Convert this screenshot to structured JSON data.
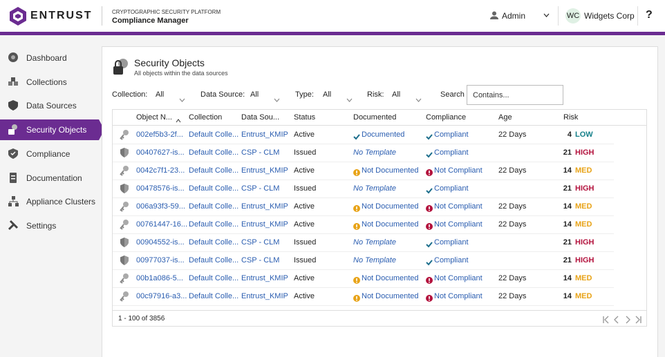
{
  "header": {
    "logo": "ENTRUST",
    "platform": "CRYPTOGRAPHIC SECURITY PLATFORM",
    "product": "Compliance Manager",
    "user": "Admin",
    "org_initials": "WC",
    "org": "Widgets Corp",
    "help": "?"
  },
  "nav": {
    "items": [
      "Dashboard",
      "Collections",
      "Data Sources",
      "Security Objects",
      "Compliance",
      "Documentation",
      "Appliance Clusters",
      "Settings"
    ],
    "selected": 3
  },
  "panel": {
    "title": "Security Objects",
    "subtitle": "All objects within the data sources",
    "filters": [
      {
        "label": "Collection:",
        "value": "All"
      },
      {
        "label": "Data Source:",
        "value": "All"
      },
      {
        "label": "Type:",
        "value": "All"
      },
      {
        "label": "Risk:",
        "value": "All"
      }
    ],
    "search": {
      "label": "Search",
      "placeholder": "Contains..."
    },
    "table": {
      "columns": [
        "Object N...",
        "Collection",
        "Data Sou...",
        "Status",
        "Documented",
        "Compliance",
        "Age",
        "Risk"
      ],
      "rows": [
        [
          "002ef5b3-2f...",
          "Default Colle...",
          "Entrust_KMIP",
          "Active",
          "Documented",
          "Compliant",
          "22 Days",
          4,
          "LOW"
        ],
        [
          "00407627-is...",
          "Default Colle...",
          "CSP - CLM",
          "Issued",
          "No Template",
          "Compliant",
          null,
          21,
          "HIGH"
        ],
        [
          "0042c7f1-23...",
          "Default Colle...",
          "Entrust_KMIP",
          "Active",
          "Not Documented",
          "Not Compliant",
          "22 Days",
          14,
          "MED"
        ],
        [
          "00478576-is...",
          "Default Colle...",
          "CSP - CLM",
          "Issued",
          "No Template",
          "Compliant",
          null,
          21,
          "HIGH"
        ],
        [
          "006a93f3-59...",
          "Default Colle...",
          "Entrust_KMIP",
          "Active",
          "Not Documented",
          "Not Compliant",
          "22 Days",
          14,
          "MED"
        ],
        [
          "00761447-16...",
          "Default Colle...",
          "Entrust_KMIP",
          "Active",
          "Not Documented",
          "Not Compliant",
          "22 Days",
          14,
          "MED"
        ],
        [
          "00904552-is...",
          "Default Colle...",
          "CSP - CLM",
          "Issued",
          "No Template",
          "Compliant",
          null,
          21,
          "HIGH"
        ],
        [
          "00977037-is...",
          "Default Colle...",
          "CSP - CLM",
          "Issued",
          "No Template",
          "Compliant",
          null,
          21,
          "HIGH"
        ],
        [
          "00b1a086-5...",
          "Default Colle...",
          "Entrust_KMIP",
          "Active",
          "Not Documented",
          "Not Compliant",
          "22 Days",
          14,
          "MED"
        ],
        [
          "00c97916-a3...",
          "Default Colle...",
          "Entrust_KMIP",
          "Active",
          "Not Documented",
          "Not Compliant",
          "22 Days",
          14,
          "MED"
        ]
      ]
    },
    "footer": "1 - 100 of 3856"
  }
}
